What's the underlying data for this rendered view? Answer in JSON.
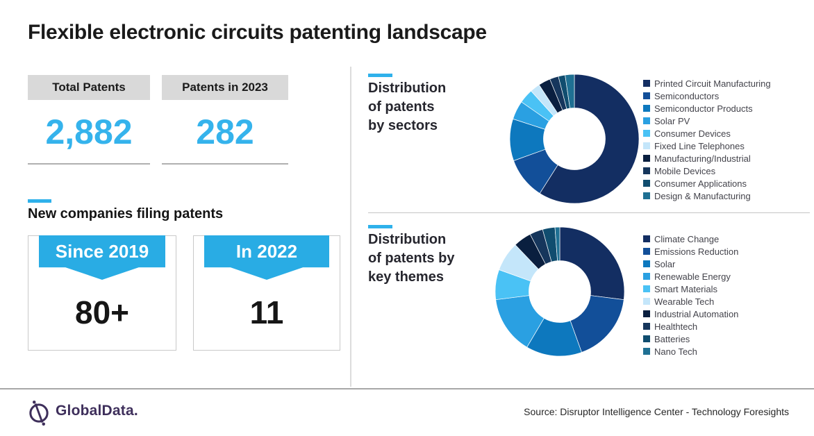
{
  "page": {
    "title": "Flexible electronic circuits patenting landscape"
  },
  "colors": {
    "accent_cyan": "#2FB1EB",
    "ribbon_cyan": "#29ACE4",
    "stat_value_cyan": "#35B3EC",
    "logo_purple": "#3E2F5B",
    "stat_label_bg": "#d9d9d9"
  },
  "stats": [
    {
      "label": "Total Patents",
      "value": "2,882"
    },
    {
      "label": "Patents in 2023",
      "value": "282"
    }
  ],
  "new_companies": {
    "heading": "New companies filing patents",
    "cards": [
      {
        "ribbon": "Since 2019",
        "value": "80+"
      },
      {
        "ribbon": "In 2022",
        "value": "11"
      }
    ]
  },
  "chart_data": [
    {
      "type": "pie",
      "subtype": "donut",
      "title": "Distribution of patents by sectors",
      "title_lines": [
        "Distribution",
        "of patents",
        "by sectors"
      ],
      "legend_position": "right",
      "unit": "percent (estimated from slice angles)",
      "categories": [
        "Printed Circuit Manufacturing",
        "Semiconductors",
        "Semiconductor Products",
        "Solar PV",
        "Consumer Devices",
        "Fixed Line Telephones",
        "Manufacturing/Industrial",
        "Mobile Devices",
        "Consumer Applications",
        "Design & Manufacturing"
      ],
      "values": [
        59,
        10.5,
        10.5,
        4.7,
        3.6,
        2.5,
        3.0,
        2.2,
        1.7,
        2.3
      ],
      "colors": [
        "#132E62",
        "#124F99",
        "#0D78BE",
        "#2AA0E2",
        "#4AC2F5",
        "#C4E6FA",
        "#0A1F3F",
        "#16365C",
        "#104D6F",
        "#1F7093"
      ]
    },
    {
      "type": "pie",
      "subtype": "donut",
      "title": "Distribution of patents by key themes",
      "title_lines": [
        "Distribution",
        "of patents by",
        "key themes"
      ],
      "legend_position": "right",
      "unit": "percent (estimated from slice angles)",
      "categories": [
        "Climate Change",
        "Emissions Reduction",
        "Solar",
        "Renewable Energy",
        "Smart Materials",
        "Wearable Tech",
        "Industrial Automation",
        "Healthtech",
        "Batteries",
        "Nano Tech"
      ],
      "values": [
        27,
        17.5,
        14,
        14.5,
        7.5,
        7.4,
        4.5,
        3.3,
        3.1,
        1.2
      ],
      "colors": [
        "#132E62",
        "#124F99",
        "#0D78BE",
        "#2AA0E2",
        "#4AC2F5",
        "#C4E6FA",
        "#0A1F3F",
        "#16365C",
        "#104D6F",
        "#1F7093"
      ]
    }
  ],
  "footer": {
    "logo_text": "GlobalData.",
    "source": "Source: Disruptor Intelligence Center - Technology Foresights"
  }
}
